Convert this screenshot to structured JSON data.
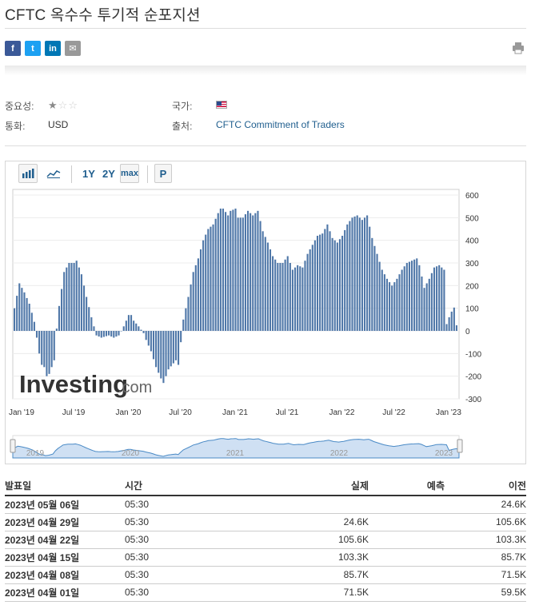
{
  "title": "CFTC 옥수수 투기적 순포지션",
  "share": {
    "facebook": "f",
    "twitter": "t",
    "linkedin": "in",
    "email": "✉"
  },
  "meta": {
    "importance_label": "중요성:",
    "importance_stars": 1,
    "country_label": "국가:",
    "currency_label": "통화:",
    "currency": "USD",
    "source_label": "출처:",
    "source": "CFTC Commitment of Traders"
  },
  "toolbar": {
    "one_year": "1Y",
    "two_year": "2Y",
    "max": "max",
    "p": "P"
  },
  "chart_data": {
    "type": "bar",
    "unit": "K",
    "ylim": [
      -300,
      600
    ],
    "y_ticks": [
      "600",
      "500",
      "400",
      "300",
      "200",
      "100",
      "0",
      "-100",
      "-200",
      "-300"
    ],
    "x_ticks": [
      "Jan '19",
      "Jul '19",
      "Jan '20",
      "Jul '20",
      "Jan '21",
      "Jul '21",
      "Jan '22",
      "Jul '22",
      "Jan '23"
    ],
    "navigator_years": [
      "2019",
      "2020",
      "2021",
      "2022",
      "2023"
    ],
    "watermark": "Investing.com",
    "anchors": [
      [
        0,
        100
      ],
      [
        2,
        210
      ],
      [
        4,
        170
      ],
      [
        6,
        120
      ],
      [
        8,
        40
      ],
      [
        9,
        -30
      ],
      [
        10,
        -100
      ],
      [
        11,
        -150
      ],
      [
        12,
        -160
      ],
      [
        13,
        -200
      ],
      [
        14,
        -190
      ],
      [
        16,
        -130
      ],
      [
        17,
        10
      ],
      [
        18,
        110
      ],
      [
        20,
        260
      ],
      [
        22,
        300
      ],
      [
        24,
        300
      ],
      [
        25,
        310
      ],
      [
        27,
        250
      ],
      [
        29,
        150
      ],
      [
        31,
        60
      ],
      [
        33,
        -20
      ],
      [
        35,
        -30
      ],
      [
        38,
        -20
      ],
      [
        40,
        -30
      ],
      [
        42,
        -20
      ],
      [
        44,
        20
      ],
      [
        46,
        70
      ],
      [
        47,
        70
      ],
      [
        48,
        45
      ],
      [
        50,
        20
      ],
      [
        52,
        -10
      ],
      [
        53,
        -40
      ],
      [
        55,
        -90
      ],
      [
        57,
        -160
      ],
      [
        59,
        -210
      ],
      [
        60,
        -230
      ],
      [
        62,
        -170
      ],
      [
        65,
        -130
      ],
      [
        66,
        -150
      ],
      [
        68,
        50
      ],
      [
        70,
        150
      ],
      [
        72,
        260
      ],
      [
        74,
        320
      ],
      [
        76,
        400
      ],
      [
        78,
        450
      ],
      [
        80,
        470
      ],
      [
        82,
        520
      ],
      [
        83,
        540
      ],
      [
        84,
        540
      ],
      [
        86,
        510
      ],
      [
        87,
        530
      ],
      [
        89,
        540
      ],
      [
        90,
        500
      ],
      [
        92,
        500
      ],
      [
        94,
        530
      ],
      [
        96,
        510
      ],
      [
        98,
        530
      ],
      [
        100,
        440
      ],
      [
        102,
        390
      ],
      [
        104,
        330
      ],
      [
        106,
        300
      ],
      [
        108,
        300
      ],
      [
        110,
        330
      ],
      [
        112,
        270
      ],
      [
        114,
        290
      ],
      [
        116,
        280
      ],
      [
        118,
        340
      ],
      [
        120,
        380
      ],
      [
        122,
        420
      ],
      [
        124,
        430
      ],
      [
        126,
        470
      ],
      [
        128,
        410
      ],
      [
        130,
        390
      ],
      [
        132,
        420
      ],
      [
        134,
        470
      ],
      [
        136,
        500
      ],
      [
        138,
        510
      ],
      [
        140,
        490
      ],
      [
        142,
        510
      ],
      [
        144,
        410
      ],
      [
        146,
        340
      ],
      [
        148,
        270
      ],
      [
        150,
        230
      ],
      [
        152,
        200
      ],
      [
        154,
        230
      ],
      [
        156,
        270
      ],
      [
        158,
        300
      ],
      [
        160,
        310
      ],
      [
        162,
        320
      ],
      [
        163,
        290
      ],
      [
        165,
        190
      ],
      [
        167,
        230
      ],
      [
        169,
        280
      ],
      [
        171,
        290
      ],
      [
        173,
        270
      ],
      [
        174,
        30
      ],
      [
        175,
        60
      ],
      [
        176,
        85
      ],
      [
        177,
        103
      ],
      [
        178,
        24.6
      ]
    ]
  },
  "table": {
    "headers": {
      "date": "발표일",
      "time": "시간",
      "actual": "실제",
      "forecast": "예측",
      "previous": "이전"
    },
    "rows": [
      {
        "date": "2023년 05월 06일",
        "time": "05:30",
        "actual": "",
        "forecast": "",
        "previous": "24.6K"
      },
      {
        "date": "2023년 04월 29일",
        "time": "05:30",
        "actual": "24.6K",
        "forecast": "",
        "previous": "105.6K"
      },
      {
        "date": "2023년 04월 22일",
        "time": "05:30",
        "actual": "105.6K",
        "forecast": "",
        "previous": "103.3K"
      },
      {
        "date": "2023년 04월 15일",
        "time": "05:30",
        "actual": "103.3K",
        "forecast": "",
        "previous": "85.7K"
      },
      {
        "date": "2023년 04월 08일",
        "time": "05:30",
        "actual": "85.7K",
        "forecast": "",
        "previous": "71.5K"
      },
      {
        "date": "2023년 04월 01일",
        "time": "05:30",
        "actual": "71.5K",
        "forecast": "",
        "previous": "59.5K"
      }
    ]
  }
}
